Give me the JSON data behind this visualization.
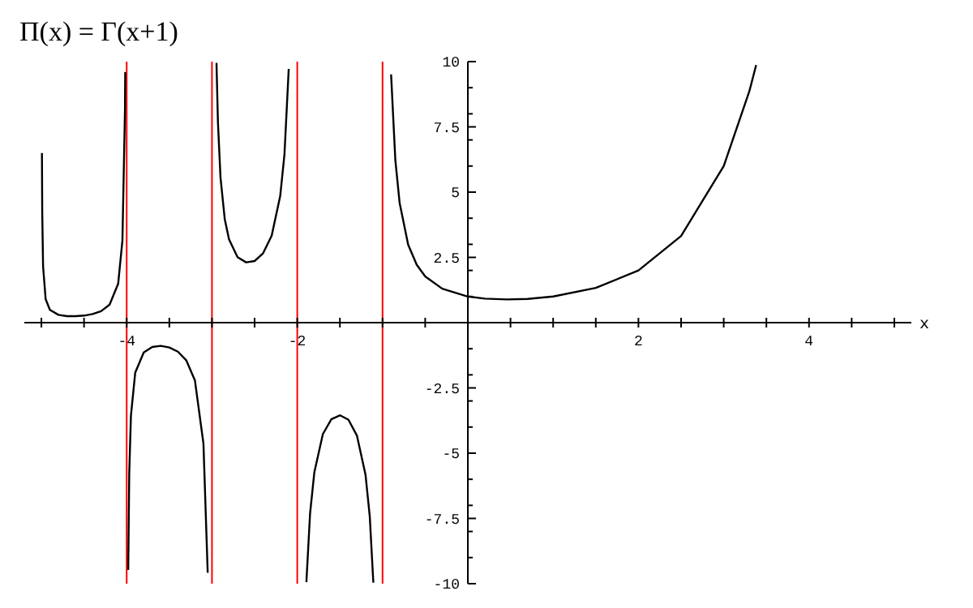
{
  "chart_data": {
    "type": "line",
    "title": "Π(x) = Γ(x+1)",
    "xlabel": "x",
    "grid": false,
    "legend": false,
    "xlim": [
      -5.2,
      5.2
    ],
    "ylim": [
      -10,
      10
    ],
    "xticks": [
      {
        "value": -5,
        "label": null
      },
      {
        "value": -4.5,
        "label": null
      },
      -4,
      {
        "value": -3.5,
        "label": null
      },
      {
        "value": -3,
        "label": null
      },
      {
        "value": -2.5,
        "label": null
      },
      -2,
      {
        "value": -1.5,
        "label": null
      },
      {
        "value": -1,
        "label": null
      },
      {
        "value": -0.5,
        "label": null
      },
      {
        "value": 0.5,
        "label": null
      },
      {
        "value": 1,
        "label": null
      },
      {
        "value": 1.5,
        "label": null
      },
      2,
      {
        "value": 2.5,
        "label": null
      },
      {
        "value": 3,
        "label": null
      },
      {
        "value": 3.5,
        "label": null
      },
      4,
      {
        "value": 4.5,
        "label": null
      },
      {
        "value": 5,
        "label": null
      }
    ],
    "yticks": [
      -10,
      {
        "value": -9,
        "label": null
      },
      {
        "value": -8,
        "label": null
      },
      -7.5,
      {
        "value": -7,
        "label": null
      },
      {
        "value": -6,
        "label": null
      },
      -5,
      {
        "value": -4,
        "label": null
      },
      {
        "value": -3,
        "label": null
      },
      -2.5,
      {
        "value": -2,
        "label": null
      },
      {
        "value": -1,
        "label": null
      },
      {
        "value": 1,
        "label": null
      },
      {
        "value": 2,
        "label": null
      },
      2.5,
      {
        "value": 3,
        "label": null
      },
      {
        "value": 4,
        "label": null
      },
      5,
      {
        "value": 6,
        "label": null
      },
      {
        "value": 7,
        "label": null
      },
      7.5,
      {
        "value": 8,
        "label": null
      },
      {
        "value": 9,
        "label": null
      },
      10
    ],
    "ref_lines": [
      {
        "axis": "x",
        "value": -4,
        "color": "#ff0000"
      },
      {
        "axis": "x",
        "value": -3,
        "color": "#ff0000"
      },
      {
        "axis": "x",
        "value": -2,
        "color": "#ff0000"
      },
      {
        "axis": "x",
        "value": -1,
        "color": "#ff0000"
      }
    ],
    "series": [
      {
        "color": "#000000",
        "x": [
          -4.9935,
          -4.99,
          -4.98,
          -4.95,
          -4.9,
          -4.8,
          -4.7,
          -4.6,
          -4.5,
          -4.4,
          -4.3,
          -4.2,
          -4.1,
          -4.05,
          -4.02,
          -4.017
        ],
        "values": [
          6.5,
          4.23,
          2.15,
          0.9,
          0.49,
          0.3,
          0.25,
          0.25,
          0.27,
          0.33,
          0.44,
          0.69,
          1.49,
          3.14,
          8.13,
          9.6
        ]
      },
      {
        "color": "#000000",
        "x": [
          -3.982,
          -3.97,
          -3.95,
          -3.9,
          -3.8,
          -3.7,
          -3.6,
          -3.5,
          -3.4,
          -3.3,
          -3.2,
          -3.1,
          -3.05
        ],
        "values": [
          -9.47,
          -5.78,
          -3.56,
          -1.92,
          -1.14,
          -0.93,
          -0.89,
          -0.95,
          -1.11,
          -1.45,
          -2.21,
          -4.63,
          -9.58
        ]
      },
      {
        "color": "#000000",
        "x": [
          -2.947,
          -2.93,
          -2.9,
          -2.85,
          -2.8,
          -2.7,
          -2.6,
          -2.5,
          -2.4,
          -2.3,
          -2.2,
          -2.15,
          -2.1
        ],
        "values": [
          9.95,
          7.67,
          5.56,
          3.96,
          3.19,
          2.51,
          2.31,
          2.36,
          2.66,
          3.33,
          4.85,
          6.45,
          9.72
        ]
      },
      {
        "color": "#000000",
        "x": [
          -1.893,
          -1.85,
          -1.8,
          -1.7,
          -1.6,
          -1.5,
          -1.4,
          -1.3,
          -1.2,
          -1.15,
          -1.108
        ],
        "values": [
          -9.94,
          -7.32,
          -5.74,
          -4.27,
          -3.7,
          -3.55,
          -3.72,
          -4.33,
          -5.82,
          -7.42,
          -9.96
        ]
      },
      {
        "color": "#000000",
        "x": [
          -0.9,
          -0.85,
          -0.8,
          -0.7,
          -0.6,
          -0.5,
          -0.3,
          0,
          0.2,
          0.46,
          0.7,
          1,
          1.5,
          2,
          2.5,
          3,
          3.3,
          3.38
        ],
        "values": [
          9.51,
          6.22,
          4.59,
          2.99,
          2.22,
          1.77,
          1.3,
          1,
          0.92,
          0.89,
          0.91,
          1,
          1.33,
          2,
          3.32,
          6,
          8.86,
          9.87
        ]
      }
    ]
  }
}
